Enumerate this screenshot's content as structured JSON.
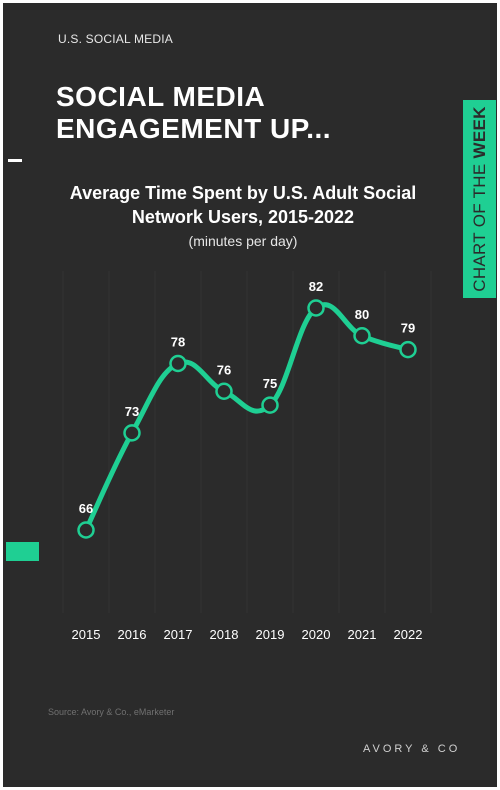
{
  "kicker": "U.S. SOCIAL MEDIA",
  "headline": "SOCIAL MEDIA ENGAGEMENT UP...",
  "side_tab": {
    "text_plain": "CHART OF THE ",
    "text_bold": "WEEK"
  },
  "source": "Source: Avory & Co., eMarketer",
  "brand": "AVORY & CO",
  "colors": {
    "background": "#2b2b2b",
    "accent": "#1fcf93",
    "text": "#ffffff"
  },
  "chart_data": {
    "type": "line",
    "title": "Average Time Spent by U.S. Adult Social Network Users, 2015-2022",
    "subtitle": "(minutes per day)",
    "x": [
      "2015",
      "2016",
      "2017",
      "2018",
      "2019",
      "2020",
      "2021",
      "2022"
    ],
    "values": [
      66,
      73,
      78,
      76,
      75,
      82,
      80,
      79
    ],
    "data_labels": [
      "66",
      "73",
      "78",
      "76",
      "75",
      "82",
      "80",
      "79"
    ],
    "xlabel": "",
    "ylabel": "",
    "ylim": [
      60,
      86
    ],
    "grid": "vertical",
    "legend": "none"
  }
}
